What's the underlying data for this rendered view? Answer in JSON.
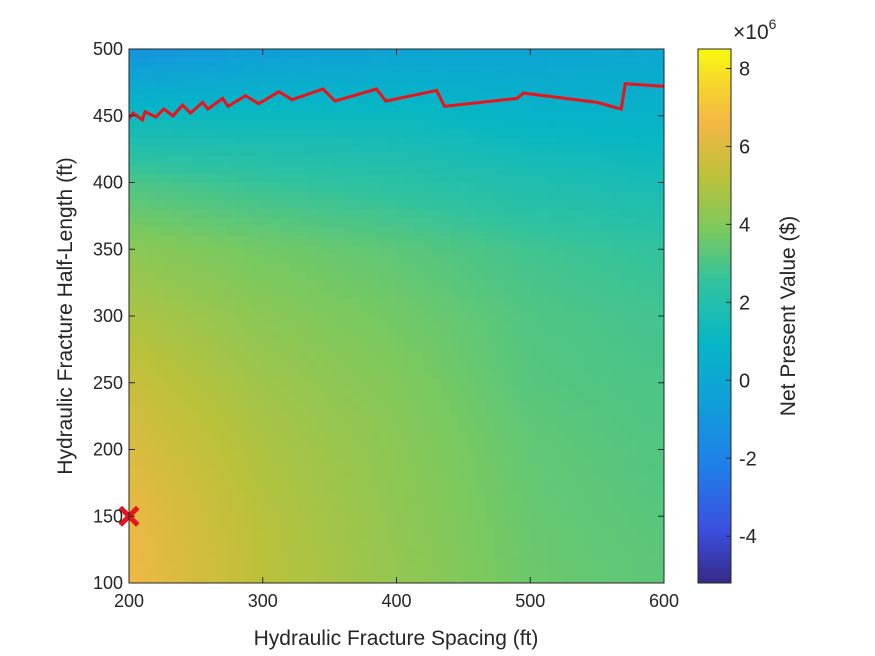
{
  "chart_data": {
    "type": "heatmap",
    "title": "",
    "xlabel": "Hydraulic Fracture Spacing (ft)",
    "ylabel": "Hydraulic Fracture Half-Length (ft)",
    "xlim": [
      200,
      600
    ],
    "ylim": [
      100,
      500
    ],
    "x_ticks": [
      200,
      300,
      400,
      500,
      600
    ],
    "y_ticks": [
      100,
      150,
      200,
      250,
      300,
      350,
      400,
      450,
      500
    ],
    "colorbar": {
      "label": "Net Present Value ($)",
      "multiplier_base": "×10",
      "multiplier_exponent": "6",
      "range": [
        -5.2,
        8.5
      ],
      "ticks": [
        -4,
        -2,
        0,
        2,
        4,
        6,
        8
      ],
      "colormap": "parula"
    },
    "surface_samples": {
      "x": [
        200,
        300,
        400,
        500,
        600
      ],
      "y": [
        100,
        150,
        200,
        250,
        300,
        350,
        400,
        450,
        500
      ],
      "z_millions": [
        [
          6.5,
          5.2,
          4.4,
          3.6,
          3.3
        ],
        [
          6.4,
          5.1,
          4.3,
          3.5,
          3.2
        ],
        [
          6.0,
          4.9,
          4.2,
          3.4,
          3.1
        ],
        [
          5.5,
          4.6,
          4.0,
          3.2,
          3.0
        ],
        [
          4.9,
          4.2,
          3.7,
          3.1,
          2.8
        ],
        [
          4.2,
          3.7,
          3.3,
          2.8,
          2.5
        ],
        [
          3.0,
          2.6,
          2.3,
          1.9,
          1.6
        ],
        [
          1.2,
          1.2,
          1.2,
          0.8,
          0.7
        ],
        [
          -1.2,
          -0.6,
          -0.3,
          -0.2,
          0.0
        ]
      ]
    },
    "red_line": {
      "name": "",
      "color": "#e8141b",
      "x": [
        200,
        203,
        210,
        212,
        220,
        226,
        233,
        240,
        246,
        255,
        259,
        270,
        274,
        287,
        297,
        312,
        322,
        345,
        354,
        385,
        392,
        430,
        436,
        490,
        495,
        550,
        568,
        571,
        600
      ],
      "y": [
        448,
        452,
        447,
        453,
        449,
        455,
        450,
        458,
        452,
        460,
        455,
        463,
        457,
        465,
        459,
        468,
        462,
        470,
        461,
        470,
        461,
        469,
        457,
        463,
        467,
        460,
        455,
        474,
        472
      ]
    },
    "marker": {
      "name": "",
      "symbol": "x",
      "color": "#e8141b",
      "x": 200,
      "y": 150
    }
  }
}
